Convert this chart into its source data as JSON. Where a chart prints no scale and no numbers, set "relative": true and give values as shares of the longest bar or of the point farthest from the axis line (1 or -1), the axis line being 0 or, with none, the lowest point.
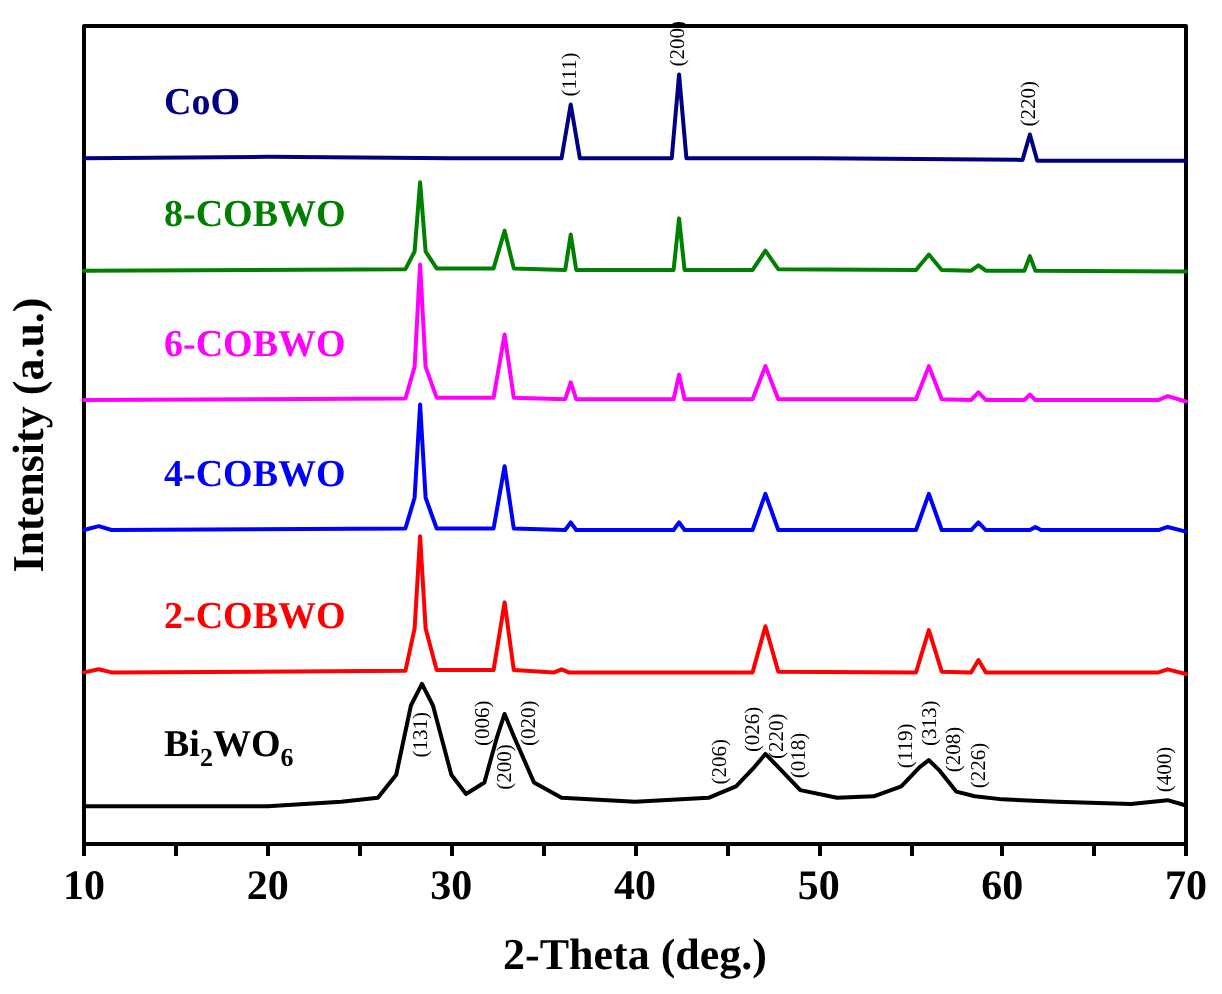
{
  "chart_data": {
    "type": "line",
    "relative": true,
    "xlabel": "2-Theta (deg.)",
    "ylabel": "Intensity (a.u.)",
    "xlim": [
      10,
      70
    ],
    "xticks": [
      10,
      {
        "value": 15,
        "label": null
      },
      20,
      {
        "value": 25,
        "label": null
      },
      30,
      {
        "value": 35,
        "label": null
      },
      40,
      {
        "value": 45,
        "label": null
      },
      50,
      {
        "value": 55,
        "label": null
      },
      60,
      {
        "value": 65,
        "label": null
      },
      70
    ],
    "tick_labels": "x",
    "grid": false,
    "legend": false,
    "marker": "none",
    "line_style": "solid",
    "series": [
      {
        "name": "CoO",
        "color": "#000080",
        "x": [
          10,
          20,
          30,
          36,
          36.5,
          37,
          42,
          42.4,
          42.8,
          50,
          61.1,
          61.5,
          61.9,
          70
        ],
        "values": [
          0.891,
          0.893,
          0.891,
          0.891,
          0.961,
          0.891,
          0.891,
          1.0,
          0.891,
          0.891,
          0.889,
          0.922,
          0.888,
          0.888
        ]
      },
      {
        "name": "8-COBWO",
        "color": "#008000",
        "x": [
          10,
          27.5,
          28,
          28.3,
          28.6,
          29.2,
          32.3,
          32.9,
          33.4,
          36.2,
          36.5,
          36.8,
          42.1,
          42.4,
          42.7,
          46.4,
          47.1,
          47.8,
          55.3,
          56,
          56.7,
          58.3,
          58.7,
          59.1,
          61.2,
          61.5,
          61.8,
          70
        ],
        "values": [
          0.745,
          0.747,
          0.77,
          0.86,
          0.77,
          0.748,
          0.748,
          0.797,
          0.748,
          0.746,
          0.792,
          0.746,
          0.746,
          0.813,
          0.746,
          0.746,
          0.771,
          0.747,
          0.746,
          0.766,
          0.746,
          0.745,
          0.752,
          0.745,
          0.745,
          0.764,
          0.745,
          0.744
        ]
      },
      {
        "name": "6-COBWO",
        "color": "#ff00ff",
        "x": [
          10,
          27.5,
          28,
          28.3,
          28.6,
          29.2,
          32.3,
          32.9,
          33.4,
          36.2,
          36.5,
          36.8,
          42.1,
          42.4,
          42.7,
          46.4,
          47.1,
          47.8,
          55.3,
          56,
          56.7,
          58.3,
          58.7,
          59.1,
          61.2,
          61.5,
          61.8,
          68.5,
          69,
          70
        ],
        "values": [
          0.577,
          0.579,
          0.62,
          0.753,
          0.62,
          0.58,
          0.58,
          0.662,
          0.58,
          0.578,
          0.6,
          0.578,
          0.578,
          0.61,
          0.578,
          0.578,
          0.621,
          0.578,
          0.578,
          0.621,
          0.578,
          0.577,
          0.587,
          0.577,
          0.577,
          0.584,
          0.577,
          0.577,
          0.582,
          0.575
        ]
      },
      {
        "name": "4-COBWO",
        "color": "#0000ff",
        "x": [
          10,
          10.8,
          11.5,
          27.5,
          28,
          28.3,
          28.6,
          29.2,
          32.3,
          32.9,
          33.4,
          36.2,
          36.5,
          36.8,
          42.1,
          42.4,
          42.7,
          46.4,
          47.1,
          47.8,
          55.3,
          56,
          56.7,
          58.3,
          58.7,
          59.1,
          61.5,
          61.8,
          62.1,
          68.5,
          69,
          70
        ],
        "values": [
          0.408,
          0.413,
          0.408,
          0.41,
          0.45,
          0.571,
          0.45,
          0.41,
          0.41,
          0.491,
          0.41,
          0.408,
          0.418,
          0.408,
          0.408,
          0.418,
          0.408,
          0.408,
          0.455,
          0.408,
          0.408,
          0.455,
          0.408,
          0.408,
          0.418,
          0.408,
          0.408,
          0.412,
          0.408,
          0.408,
          0.412,
          0.406
        ]
      },
      {
        "name": "2-COBWO",
        "color": "#ff0000",
        "x": [
          10,
          10.8,
          11.5,
          27.5,
          28,
          28.3,
          28.6,
          29.2,
          32.3,
          32.9,
          33.4,
          35.6,
          36,
          36.4,
          46.4,
          47.1,
          47.8,
          55.3,
          56,
          56.7,
          58.3,
          58.7,
          59.1,
          68.5,
          69,
          70
        ],
        "values": [
          0.223,
          0.227,
          0.223,
          0.225,
          0.28,
          0.4,
          0.28,
          0.226,
          0.226,
          0.314,
          0.226,
          0.223,
          0.227,
          0.223,
          0.223,
          0.283,
          0.224,
          0.223,
          0.278,
          0.224,
          0.223,
          0.239,
          0.223,
          0.223,
          0.227,
          0.221
        ]
      },
      {
        "name": "Bi$_{2}$WO$_{6}$",
        "color": "#000000",
        "x": [
          10,
          20,
          24,
          26,
          27,
          27.8,
          28.4,
          29,
          30,
          30.8,
          31.8,
          32.5,
          32.9,
          33.4,
          34.5,
          36,
          40,
          44,
          45.5,
          46.5,
          47.1,
          47.8,
          49,
          51,
          53,
          54.5,
          55.5,
          56,
          56.6,
          57.5,
          58.5,
          60,
          63,
          67,
          69,
          70
        ],
        "values": [
          0.049,
          0.049,
          0.055,
          0.06,
          0.09,
          0.18,
          0.208,
          0.18,
          0.09,
          0.065,
          0.08,
          0.14,
          0.169,
          0.14,
          0.08,
          0.06,
          0.055,
          0.06,
          0.075,
          0.1,
          0.117,
          0.1,
          0.07,
          0.06,
          0.062,
          0.075,
          0.1,
          0.109,
          0.095,
          0.068,
          0.062,
          0.058,
          0.055,
          0.052,
          0.057,
          0.05
        ]
      }
    ],
    "annotations": [
      {
        "text": "(111)",
        "x": 36.5,
        "y": 0.961
      },
      {
        "text": "(200)",
        "x": 42.4,
        "y": 1.0
      },
      {
        "text": "(220)",
        "x": 61.5,
        "y": 0.922
      },
      {
        "text": "(131)",
        "x": 28.4,
        "y": 0.208
      },
      {
        "text": "(006)",
        "x": 31.8,
        "y": 0.117
      },
      {
        "text": "(200)",
        "x": 33.0,
        "y": 0.166
      },
      {
        "text": "(020)",
        "x": 34.3,
        "y": 0.117
      },
      {
        "text": "(206)",
        "x": 44.7,
        "y": 0.067
      },
      {
        "text": "(026)",
        "x": 46.5,
        "y": 0.109
      },
      {
        "text": "(220)",
        "x": 47.8,
        "y": 0.1
      },
      {
        "text": "(018)",
        "x": 49.0,
        "y": 0.075
      },
      {
        "text": "(119)",
        "x": 54.8,
        "y": 0.088
      },
      {
        "text": "(313)",
        "x": 56.1,
        "y": 0.117
      },
      {
        "text": "(208)",
        "x": 57.4,
        "y": 0.083
      },
      {
        "text": "(226)",
        "x": 58.8,
        "y": 0.062
      },
      {
        "text": "(400)",
        "x": 68.9,
        "y": 0.057
      }
    ]
  }
}
